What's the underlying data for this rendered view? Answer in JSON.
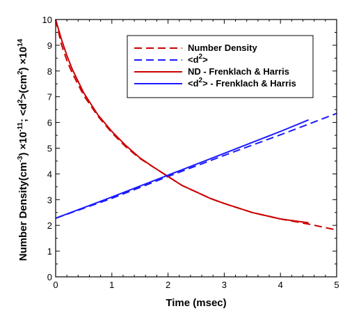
{
  "chart_data": {
    "type": "line",
    "xlabel": "Time (msec)",
    "ylabel": {
      "text": "Number Density(cm",
      "exp1": "-3",
      "mid1": ") ×10",
      "exp2": "-11",
      "mid2": "; <d",
      "exp3": "2",
      "mid3": ">(cm",
      "exp4": "2",
      "mid4": ") ×10",
      "exp5": "14"
    },
    "xlim": [
      0,
      5
    ],
    "ylim": [
      0,
      10
    ],
    "xticks": [
      0,
      1,
      2,
      3,
      4,
      5
    ],
    "yticks": [
      0,
      1,
      2,
      3,
      4,
      5,
      6,
      7,
      8,
      9,
      10
    ],
    "grid": false,
    "legend_position": "top-right",
    "series": [
      {
        "name": "Number Density",
        "color": "#cc0000",
        "dash": "dashed",
        "x": [
          0,
          0.1,
          0.2,
          0.3,
          0.5,
          0.75,
          1.0,
          1.25,
          1.5,
          1.75,
          2.0,
          2.25,
          2.5,
          2.75,
          3.0,
          3.5,
          4.0,
          4.5,
          5.0
        ],
        "y": [
          10.0,
          9.05,
          8.4,
          7.9,
          7.05,
          6.25,
          5.6,
          5.05,
          4.6,
          4.25,
          3.9,
          3.55,
          3.3,
          3.05,
          2.85,
          2.5,
          2.25,
          2.05,
          1.82
        ]
      },
      {
        "name": "<d²>",
        "color": "#1a1aff",
        "dash": "dashed",
        "x": [
          0,
          1,
          2,
          3,
          4,
          5
        ],
        "y": [
          2.28,
          3.05,
          3.9,
          4.72,
          5.52,
          6.35
        ]
      },
      {
        "name": "ND - Frenklach & Harris",
        "color": "#cc0000",
        "dash": "solid",
        "x": [
          0,
          0.1,
          0.2,
          0.3,
          0.5,
          0.75,
          1.0,
          1.25,
          1.5,
          1.75,
          2.0,
          2.25,
          2.5,
          2.75,
          3.0,
          3.5,
          4.0,
          4.5
        ],
        "y": [
          10.0,
          9.25,
          8.6,
          8.05,
          7.15,
          6.3,
          5.65,
          5.1,
          4.62,
          4.25,
          3.9,
          3.55,
          3.3,
          3.05,
          2.85,
          2.5,
          2.25,
          2.1
        ]
      },
      {
        "name": "<d²> - Frenklach & Harris",
        "color": "#1a1aff",
        "dash": "solid",
        "x": [
          0,
          1,
          2,
          3,
          4,
          4.5
        ],
        "y": [
          2.28,
          3.1,
          3.95,
          4.8,
          5.65,
          6.1
        ]
      }
    ],
    "legend": [
      {
        "label": "Number Density",
        "sup": ""
      },
      {
        "label": "<d",
        "sup": "2",
        "suffix": ">"
      },
      {
        "label": "ND - Frenklach & Harris",
        "sup": ""
      },
      {
        "label": "<d",
        "sup": "2",
        "suffix": "> - Frenklach & Harris"
      }
    ]
  }
}
